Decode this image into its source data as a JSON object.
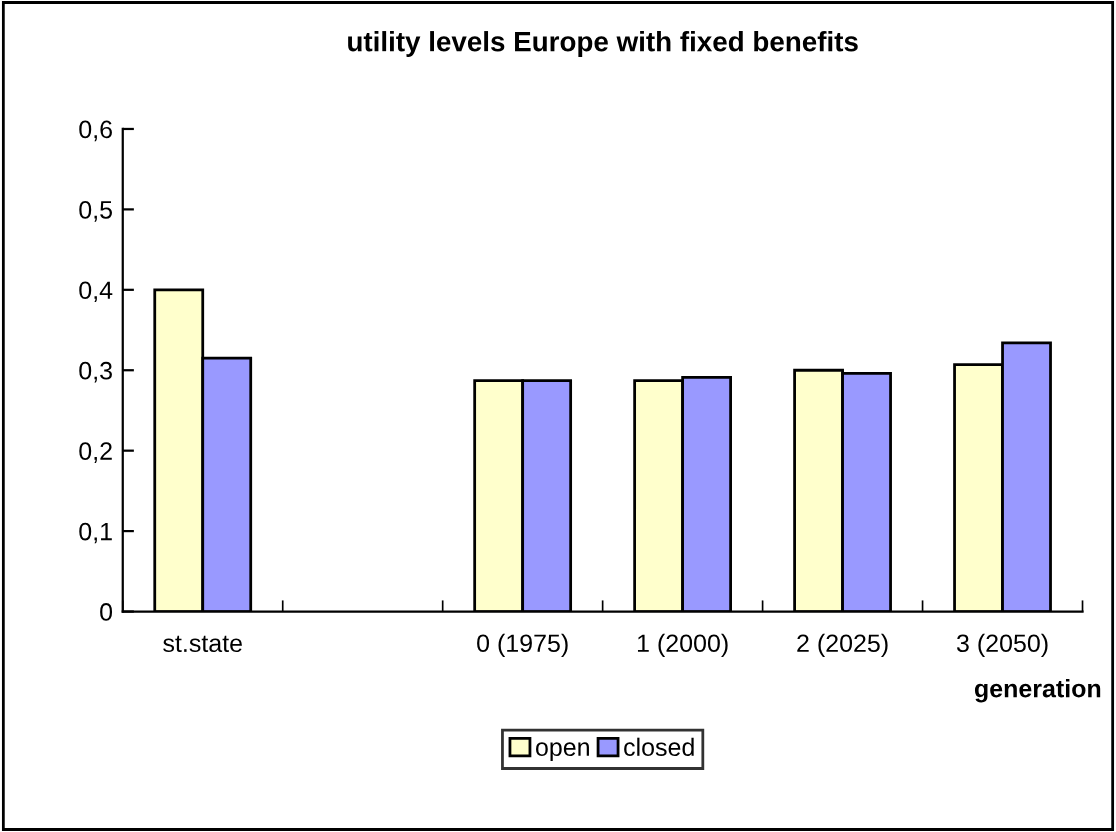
{
  "chart_data": {
    "type": "bar",
    "title": "utility levels Europe with fixed benefits",
    "xlabel": "generation",
    "categories": [
      "st.state",
      null,
      "0 (1975)",
      "1 (2000)",
      "2 (2025)",
      "3 (2050)"
    ],
    "series": [
      {
        "name": "open",
        "color": "#ffffcc",
        "values": [
          0.4,
          null,
          0.287,
          0.287,
          0.3,
          0.307
        ]
      },
      {
        "name": "closed",
        "color": "#9999ff",
        "values": [
          0.315,
          null,
          0.287,
          0.291,
          0.296,
          0.334
        ]
      }
    ],
    "ylim": [
      0,
      0.6
    ],
    "yticks": [
      {
        "value": 0,
        "label": "0"
      },
      {
        "value": 0.1,
        "label": "0,1"
      },
      {
        "value": 0.2,
        "label": "0,2"
      },
      {
        "value": 0.3,
        "label": "0,3"
      },
      {
        "value": 0.4,
        "label": "0,4"
      },
      {
        "value": 0.5,
        "label": "0,5"
      },
      {
        "value": 0.6,
        "label": "0,6"
      }
    ],
    "grid": false,
    "legend": "bottom"
  }
}
